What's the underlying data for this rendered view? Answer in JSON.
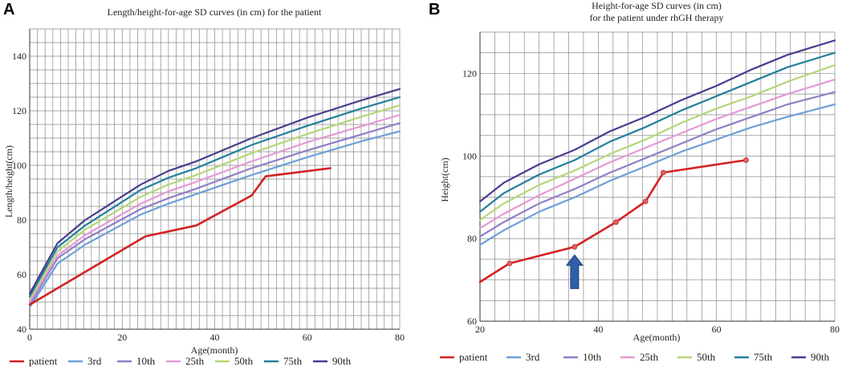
{
  "colors": {
    "patient": "#d42222",
    "p3": "#6ea0d8",
    "p10": "#8f7fc8",
    "p25": "#e49ad4",
    "p50": "#b4d67a",
    "p75": "#237f9c",
    "p90": "#4a3d8e",
    "arrow": "#2f5fa8",
    "grid": "#888888"
  },
  "legend": [
    "patient",
    "3rd",
    "10th",
    "25th",
    "50th",
    "75th",
    "90th"
  ],
  "chart_data": [
    {
      "panel": "A",
      "type": "line",
      "title": "Length/height-for-age SD curves (in cm) for the patient",
      "xlabel": "Age(month)",
      "ylabel": "Length/height(cm)",
      "xlim": [
        0,
        80
      ],
      "ylim": [
        40,
        150
      ],
      "xticks": [
        0,
        20,
        40,
        60,
        80
      ],
      "yticks": [
        40,
        60,
        80,
        100,
        120,
        140
      ],
      "series": [
        {
          "name": "3rd",
          "key": "p3",
          "x": [
            0,
            6,
            12,
            24,
            30,
            36,
            48,
            60,
            72,
            80
          ],
          "y": [
            48,
            64,
            71,
            82,
            86,
            89.5,
            96.5,
            103,
            109,
            112.5
          ]
        },
        {
          "name": "10th",
          "key": "p10",
          "x": [
            0,
            6,
            12,
            24,
            30,
            36,
            48,
            60,
            72,
            80
          ],
          "y": [
            49,
            66,
            73,
            84,
            88,
            91.5,
            99,
            105.5,
            111.5,
            115.5
          ]
        },
        {
          "name": "25th",
          "key": "p25",
          "x": [
            0,
            6,
            12,
            24,
            30,
            36,
            48,
            60,
            72,
            80
          ],
          "y": [
            50,
            67,
            74.5,
            86,
            90.5,
            94,
            101.5,
            108.5,
            114.5,
            118.5
          ]
        },
        {
          "name": "50th",
          "key": "p50",
          "x": [
            0,
            6,
            12,
            24,
            30,
            36,
            48,
            60,
            72,
            80
          ],
          "y": [
            51,
            68.5,
            76.5,
            88.5,
            93,
            96.5,
            104.5,
            111.5,
            118,
            122
          ]
        },
        {
          "name": "75th",
          "key": "p75",
          "x": [
            0,
            6,
            12,
            24,
            30,
            36,
            48,
            60,
            72,
            80
          ],
          "y": [
            52,
            70,
            78,
            91,
            95.5,
            99,
            107.5,
            114.5,
            121,
            125
          ]
        },
        {
          "name": "90th",
          "key": "p90",
          "x": [
            0,
            6,
            12,
            24,
            30,
            36,
            48,
            60,
            72,
            80
          ],
          "y": [
            53,
            71.5,
            80,
            93,
            98,
            101.5,
            110,
            117.5,
            124,
            128
          ]
        },
        {
          "name": "patient",
          "key": "patient",
          "x": [
            0,
            12,
            25,
            36,
            48,
            51,
            65
          ],
          "y": [
            49,
            61,
            74,
            78,
            89,
            96,
            99
          ]
        }
      ]
    },
    {
      "panel": "B",
      "type": "line",
      "title": "Height-for-age SD curves (in cm)",
      "subtitle": "for the patient under rhGH  therapy",
      "xlabel": "Age(month)",
      "ylabel": "Height(cm)",
      "xlim": [
        20,
        80
      ],
      "ylim": [
        60,
        130
      ],
      "xticks": [
        20,
        40,
        60,
        80
      ],
      "yticks": [
        60,
        80,
        100,
        120
      ],
      "series": [
        {
          "name": "3rd",
          "key": "p3",
          "x": [
            20,
            24,
            30,
            36,
            42,
            48,
            54,
            60,
            66,
            72,
            80
          ],
          "y": [
            78.5,
            82,
            86.5,
            90,
            94,
            97.5,
            101,
            104,
            107,
            109.5,
            112.5
          ]
        },
        {
          "name": "10th",
          "key": "p10",
          "x": [
            20,
            24,
            30,
            36,
            42,
            48,
            54,
            60,
            66,
            72,
            80
          ],
          "y": [
            80.5,
            84,
            88.5,
            92,
            96,
            99.5,
            103,
            106.5,
            109.5,
            112.5,
            115.5
          ]
        },
        {
          "name": "25th",
          "key": "p25",
          "x": [
            20,
            24,
            30,
            36,
            42,
            48,
            54,
            60,
            66,
            72,
            80
          ],
          "y": [
            82.5,
            86,
            90.5,
            94.5,
            98.5,
            102,
            105.5,
            109,
            112,
            115,
            118.5
          ]
        },
        {
          "name": "50th",
          "key": "p50",
          "x": [
            20,
            24,
            30,
            36,
            42,
            48,
            54,
            60,
            66,
            72,
            80
          ],
          "y": [
            84.5,
            88.5,
            93,
            96.5,
            100.5,
            104,
            108,
            111.5,
            114.5,
            118,
            122
          ]
        },
        {
          "name": "75th",
          "key": "p75",
          "x": [
            20,
            24,
            30,
            36,
            42,
            48,
            54,
            60,
            66,
            72,
            80
          ],
          "y": [
            86.5,
            91,
            95.5,
            99,
            103.5,
            107,
            111,
            114.5,
            118,
            121.5,
            125
          ]
        },
        {
          "name": "90th",
          "key": "p90",
          "x": [
            20,
            24,
            30,
            36,
            42,
            48,
            54,
            60,
            66,
            72,
            80
          ],
          "y": [
            89,
            93.5,
            98,
            101.5,
            106,
            109.5,
            113.5,
            117,
            121,
            124.5,
            128
          ]
        },
        {
          "name": "patient",
          "key": "patient",
          "x": [
            20,
            25,
            36,
            43,
            48,
            51,
            65
          ],
          "y": [
            69.5,
            74,
            78,
            84,
            89,
            96,
            99
          ],
          "markers": true
        }
      ],
      "arrow_at_x": 36
    }
  ]
}
